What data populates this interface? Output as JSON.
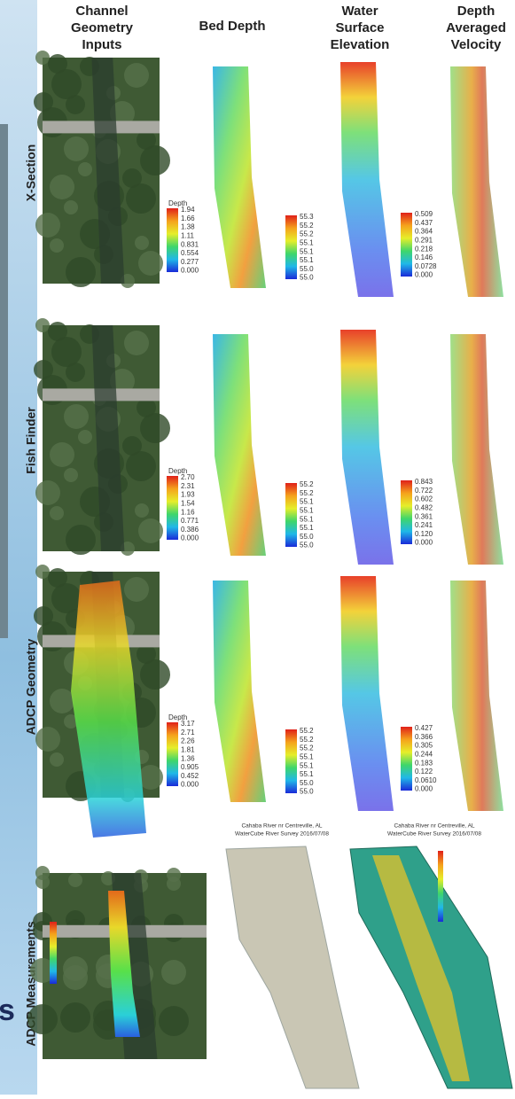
{
  "columns": [
    [
      "Channel",
      "Geometry",
      "Inputs"
    ],
    [
      "Bed Depth"
    ],
    [
      "Water",
      "Surface",
      "Elevation"
    ],
    [
      "Depth",
      "Averaged",
      "Velocity"
    ]
  ],
  "rows": [
    {
      "label": "X-Section",
      "legends": [
        {
          "title": "Depth",
          "ticks": [
            "1.94",
            "1.66",
            "1.38",
            "1.11",
            "0.831",
            "0.554",
            "0.277",
            "0.000"
          ]
        },
        {
          "ticks": [
            "55.3",
            "55.2",
            "55.2",
            "55.1",
            "55.1",
            "55.1",
            "55.0",
            "55.0"
          ]
        },
        {
          "ticks": [
            "0.509",
            "0.437",
            "0.364",
            "0.291",
            "0.218",
            "0.146",
            "0.0728",
            "0.000"
          ]
        }
      ]
    },
    {
      "label": "Fish Finder",
      "legends": [
        {
          "title": "Depth",
          "ticks": [
            "2.70",
            "2.31",
            "1.93",
            "1.54",
            "1.16",
            "0.771",
            "0.386",
            "0.000"
          ]
        },
        {
          "ticks": [
            "55.2",
            "55.2",
            "55.1",
            "55.1",
            "55.1",
            "55.1",
            "55.0",
            "55.0"
          ]
        },
        {
          "ticks": [
            "0.843",
            "0.722",
            "0.602",
            "0.482",
            "0.361",
            "0.241",
            "0.120",
            "0.000"
          ]
        }
      ]
    },
    {
      "label": "ADCP Geometry",
      "legends": [
        {
          "title": "Depth",
          "ticks": [
            "3.17",
            "2.71",
            "2.26",
            "1.81",
            "1.36",
            "0.905",
            "0.452",
            "0.000"
          ]
        },
        {
          "ticks": [
            "55.2",
            "55.2",
            "55.2",
            "55.1",
            "55.1",
            "55.1",
            "55.0",
            "55.0"
          ]
        },
        {
          "ticks": [
            "0.427",
            "0.366",
            "0.305",
            "0.244",
            "0.183",
            "0.122",
            "0.0610",
            "0.000"
          ]
        }
      ]
    }
  ],
  "bottom_row": {
    "label": "ADCP Measurements",
    "captions": [
      [
        "Cahaba River nr Centreville, AL",
        "WaterCube River Survey 2016/07/08"
      ],
      [
        "Cahaba River nr Centreville, AL",
        "WaterCube River Survey 2016/07/08"
      ]
    ]
  },
  "background_fragment": "s"
}
